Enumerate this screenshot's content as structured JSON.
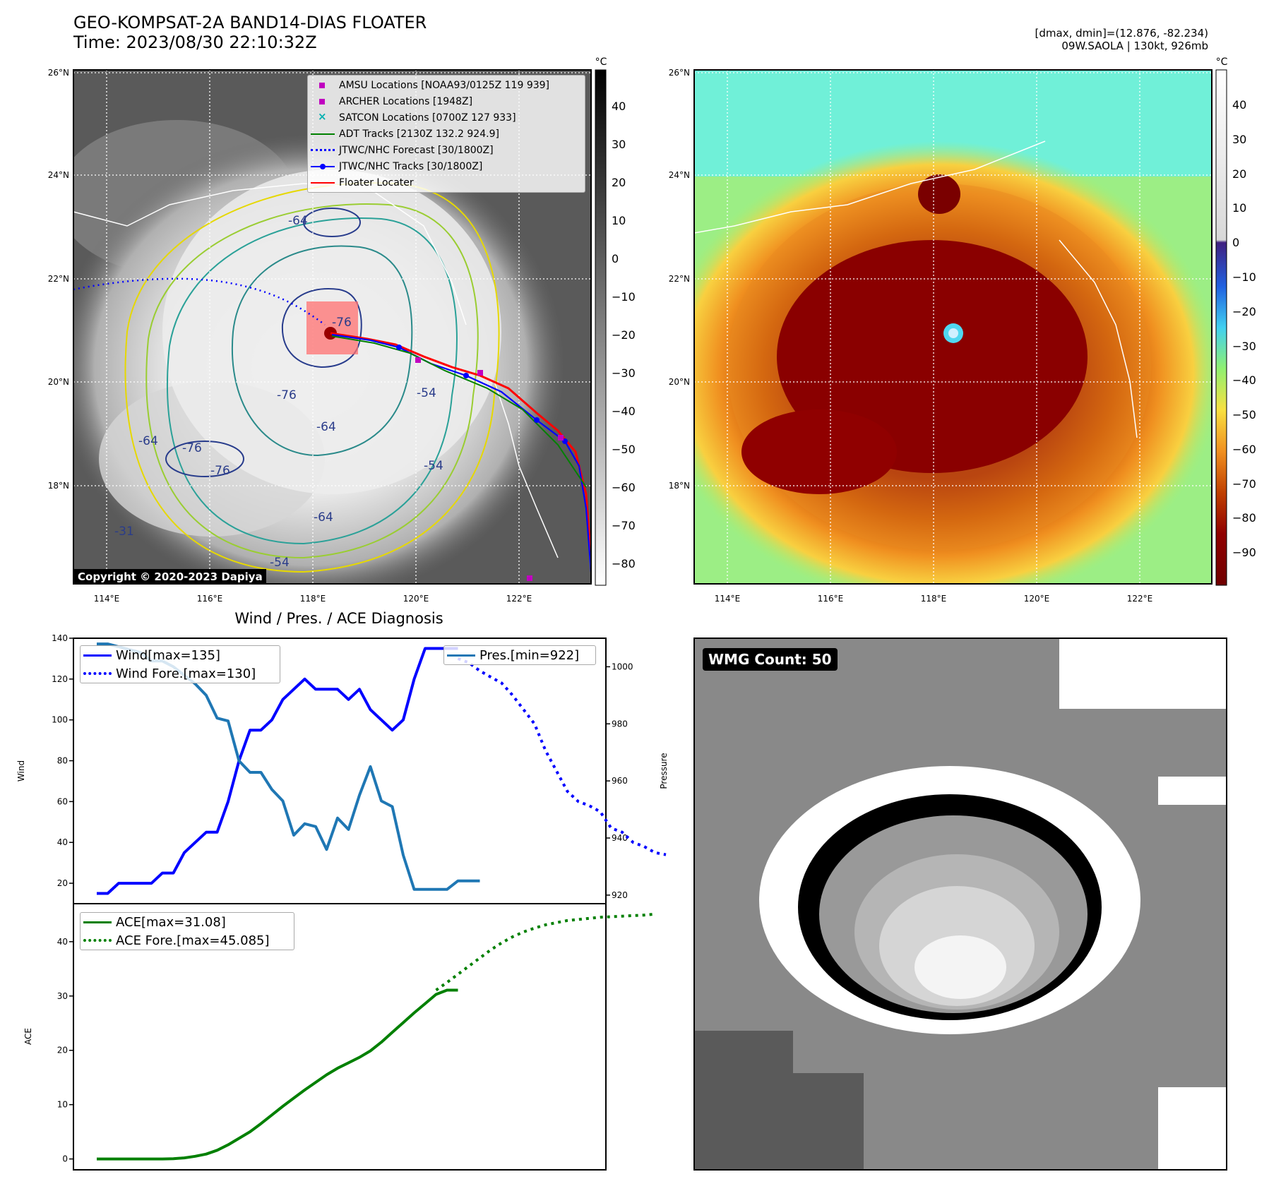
{
  "header": {
    "title_line1": "GEO-KOMPSAT-2A BAND14-DIAS FLOATER",
    "title_line2": "Time: 2023/08/30 22:10:32Z",
    "right_line1": "[dmax, dmin]=(12.876, -82.234)",
    "right_line2": "09W.SAOLA | 130kt, 926mb"
  },
  "map_left": {
    "lat_labels": [
      "26°N",
      "24°N",
      "22°N",
      "20°N",
      "18°N"
    ],
    "lon_labels": [
      "114°E",
      "116°E",
      "118°E",
      "120°E",
      "122°E"
    ],
    "contour_labels": [
      "-64",
      "-76",
      "-76",
      "-64",
      "-76",
      "-76",
      "-64",
      "-64",
      "-54",
      "-54",
      "-31",
      "-54"
    ],
    "colorbar_unit": "°C",
    "colorbar_ticks": [
      "40",
      "30",
      "20",
      "10",
      "0",
      "−10",
      "−20",
      "−30",
      "−40",
      "−50",
      "−60",
      "−70",
      "−80"
    ],
    "copyright": "Copyright © 2020-2023 Dapiya",
    "legend": [
      {
        "label": "AMSU Locations [NOAA93/0125Z 119 939]",
        "marker": "square",
        "color": "#c000c0"
      },
      {
        "label": "ARCHER Locations [1948Z]",
        "marker": "square",
        "color": "#c000c0"
      },
      {
        "label": "SATCON Locations [0700Z 127 933]",
        "marker": "x",
        "color": "#00b0b0"
      },
      {
        "label": "ADT Tracks [2130Z 132.2 924.9]",
        "marker": "line",
        "color": "#008000"
      },
      {
        "label": "JTWC/NHC Forecast [30/1800Z]",
        "marker": "dotted",
        "color": "#0000ff"
      },
      {
        "label": "JTWC/NHC Tracks [30/1800Z]",
        "marker": "line-dot",
        "color": "#0000ff"
      },
      {
        "label": "Floater Locater",
        "marker": "line",
        "color": "#ff0000"
      }
    ]
  },
  "map_right": {
    "lat_labels": [
      "26°N",
      "24°N",
      "22°N",
      "20°N",
      "18°N"
    ],
    "lon_labels": [
      "114°E",
      "116°E",
      "118°E",
      "120°E",
      "122°E"
    ],
    "colorbar_unit": "°C",
    "colorbar_ticks": [
      "40",
      "30",
      "20",
      "10",
      "0",
      "−10",
      "−20",
      "−30",
      "−40",
      "−50",
      "−60",
      "−70",
      "−80",
      "−90"
    ]
  },
  "wmg": {
    "count_label": "WMG Count: 50"
  },
  "chart_data": [
    {
      "type": "line",
      "title": "Wind / Pres. / ACE Diagnosis",
      "ylabel": "Wind",
      "ylabel_right": "Pressure",
      "ylim": [
        10,
        140
      ],
      "ylim_right": [
        917,
        1010
      ],
      "yticks": [
        20,
        40,
        60,
        80,
        100,
        120,
        140
      ],
      "yticks_right": [
        920,
        940,
        960,
        980,
        1000
      ],
      "series": [
        {
          "name": "Wind[max=135]",
          "color": "#0000ff",
          "style": "solid",
          "axis": "left",
          "x": [
            0,
            1,
            2,
            3,
            4,
            5,
            6,
            7,
            8,
            9,
            10,
            11,
            12,
            13,
            14,
            15,
            16,
            17,
            18,
            19,
            20,
            21,
            22,
            23,
            24,
            25,
            26,
            27,
            28,
            29,
            30,
            31,
            32,
            33
          ],
          "values": [
            15,
            15,
            20,
            20,
            20,
            20,
            25,
            25,
            35,
            40,
            45,
            45,
            60,
            80,
            95,
            95,
            100,
            110,
            115,
            120,
            115,
            115,
            115,
            110,
            115,
            105,
            100,
            95,
            100,
            120,
            135,
            135,
            135,
            135
          ]
        },
        {
          "name": "Wind Fore.[max=130]",
          "color": "#0000ff",
          "style": "dotted",
          "axis": "left",
          "x": [
            33,
            34,
            35,
            36,
            37,
            38,
            39,
            40,
            41,
            42,
            43,
            44,
            45,
            46,
            47,
            48,
            49,
            50,
            51,
            52
          ],
          "values": [
            130,
            128,
            124,
            121,
            118,
            112,
            105,
            98,
            85,
            75,
            65,
            60,
            58,
            55,
            47,
            45,
            40,
            38,
            35,
            34
          ]
        },
        {
          "name": "Pres.[min=922]",
          "color": "#1f77b4",
          "style": "solid",
          "axis": "right",
          "x": [
            0,
            1,
            2,
            3,
            4,
            5,
            6,
            7,
            8,
            9,
            10,
            11,
            12,
            13,
            14,
            15,
            16,
            17,
            18,
            19,
            20,
            21,
            22,
            23,
            24,
            25,
            26,
            27,
            28,
            29,
            30,
            31,
            32,
            33,
            34,
            35
          ],
          "values": [
            1008,
            1008,
            1007,
            1006,
            1005,
            1002,
            1002,
            1000,
            997,
            994,
            990,
            982,
            981,
            967,
            963,
            963,
            957,
            953,
            941,
            945,
            944,
            936,
            947,
            943,
            955,
            965,
            953,
            951,
            934,
            922,
            922,
            922,
            922,
            925,
            925,
            925
          ]
        }
      ]
    },
    {
      "type": "line",
      "ylabel": "ACE",
      "ylim": [
        -2,
        47
      ],
      "yticks": [
        0,
        10,
        20,
        30,
        40
      ],
      "series": [
        {
          "name": "ACE[max=31.08]",
          "color": "#008000",
          "style": "solid",
          "x": [
            0,
            2,
            4,
            6,
            7,
            8,
            9,
            10,
            11,
            12,
            13,
            14,
            15,
            16,
            17,
            18,
            19,
            20,
            21,
            22,
            23,
            24,
            25,
            26,
            27,
            28,
            29,
            30,
            31,
            32,
            33
          ],
          "values": [
            0,
            0,
            0,
            0,
            0.05,
            0.2,
            0.5,
            0.9,
            1.6,
            2.6,
            3.8,
            5.0,
            6.5,
            8.1,
            9.7,
            11.2,
            12.7,
            14.1,
            15.5,
            16.7,
            17.7,
            18.7,
            19.9,
            21.5,
            23.3,
            25.1,
            26.9,
            28.6,
            30.3,
            31.08,
            31.08
          ]
        },
        {
          "name": "ACE Fore.[max=45.085]",
          "color": "#008000",
          "style": "dotted",
          "x": [
            31,
            32,
            33,
            34,
            35,
            36,
            37,
            38,
            39,
            40,
            41,
            42,
            43,
            44,
            45,
            46,
            47,
            48,
            49,
            50,
            51
          ],
          "values": [
            31.08,
            32.5,
            34.0,
            35.5,
            37.0,
            38.5,
            39.8,
            40.9,
            41.8,
            42.5,
            43.1,
            43.5,
            43.9,
            44.1,
            44.3,
            44.5,
            44.6,
            44.7,
            44.8,
            44.9,
            45.085
          ]
        }
      ]
    }
  ]
}
